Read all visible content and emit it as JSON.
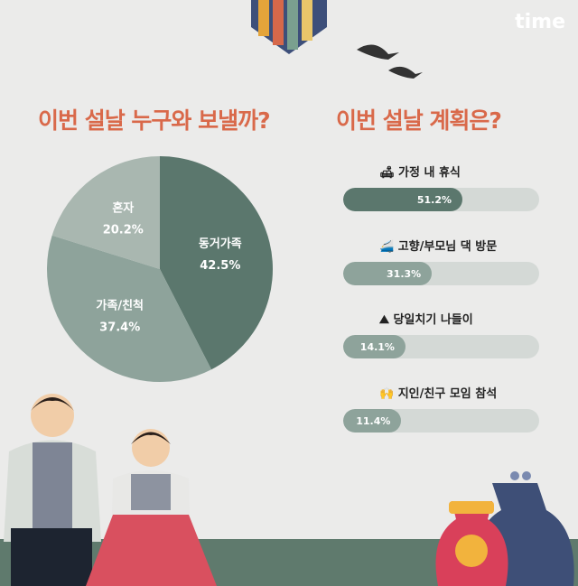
{
  "logo": "time",
  "left_title": "이번 설날 누구와 보낼까?",
  "right_title": "이번 설날 계획은?",
  "chart_data": [
    {
      "type": "pie",
      "title": "이번 설날 누구와 보낼까?",
      "slices": [
        {
          "label": "동거가족",
          "value": 42.5,
          "value_label": "42.5%",
          "color": "#5b776d"
        },
        {
          "label": "가족/친척",
          "value": 37.4,
          "value_label": "37.4%",
          "color": "#8ea39b"
        },
        {
          "label": "혼자",
          "value": 20.2,
          "value_label": "20.2%",
          "color": "#a9b7b0"
        }
      ]
    },
    {
      "type": "bar",
      "title": "이번 설날 계획은?",
      "categories": [
        "가정 내 휴식",
        "고향/부모님 댁 방문",
        "당일치기 나들이",
        "지인/친구 모임 참석"
      ],
      "values": [
        51.2,
        31.3,
        14.1,
        11.4
      ],
      "value_labels": [
        "51.2%",
        "31.3%",
        "14.1%",
        "11.4%"
      ],
      "icons": [
        "armchair-lamp-icon",
        "train-icon",
        "mountain-trees-icon",
        "friends-cheering-icon"
      ],
      "colors": [
        "#5b776d",
        "#8ea39b",
        "#8ea39b",
        "#8ea39b"
      ]
    }
  ]
}
